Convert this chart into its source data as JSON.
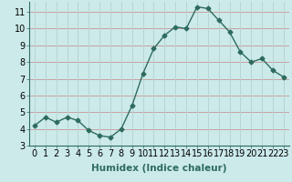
{
  "x": [
    0,
    1,
    2,
    3,
    4,
    5,
    6,
    7,
    8,
    9,
    10,
    11,
    12,
    13,
    14,
    15,
    16,
    17,
    18,
    19,
    20,
    21,
    22,
    23
  ],
  "y": [
    4.2,
    4.7,
    4.4,
    4.7,
    4.5,
    3.9,
    3.6,
    3.5,
    4.0,
    5.4,
    7.3,
    8.8,
    9.6,
    10.1,
    10.0,
    11.3,
    11.2,
    10.5,
    9.8,
    8.6,
    8.0,
    8.2,
    7.5,
    7.1
  ],
  "xlim": [
    -0.5,
    23.5
  ],
  "ylim": [
    3.0,
    11.6
  ],
  "yticks": [
    3,
    4,
    5,
    6,
    7,
    8,
    9,
    10,
    11
  ],
  "xticks": [
    0,
    1,
    2,
    3,
    4,
    5,
    6,
    7,
    8,
    9,
    10,
    11,
    12,
    13,
    14,
    15,
    16,
    17,
    18,
    19,
    20,
    21,
    22,
    23
  ],
  "xlabel": "Humidex (Indice chaleur)",
  "line_color": "#2e6b5e",
  "marker": "D",
  "marker_size": 2.5,
  "bg_color": "#cceaea",
  "grid_color_h": "#c8a0a0",
  "grid_color_v": "#b8d4d4",
  "xlabel_fontsize": 7.5,
  "tick_fontsize": 7,
  "line_width": 1.0
}
